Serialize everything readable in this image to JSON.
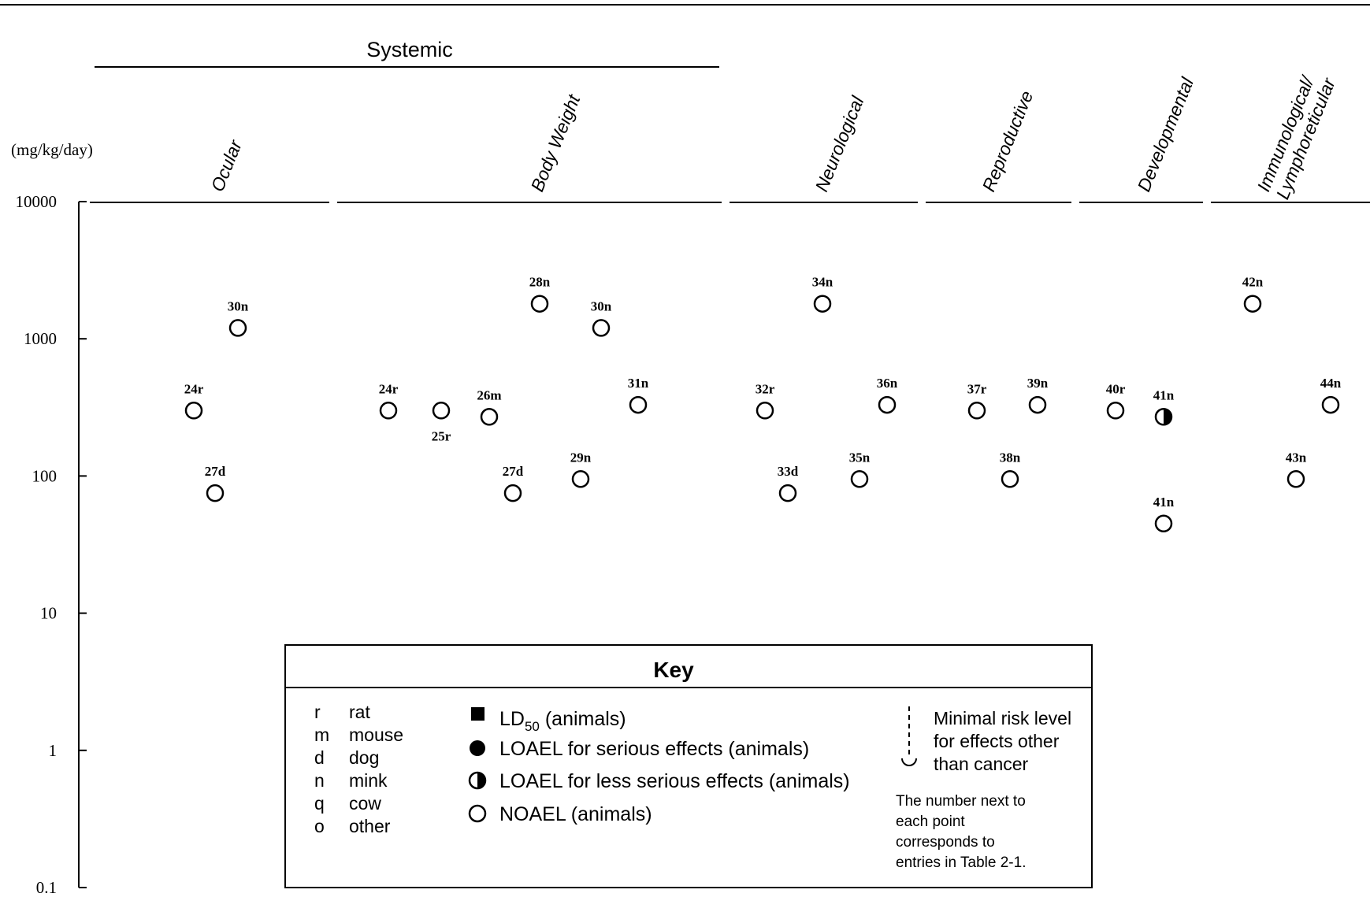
{
  "chart_data": {
    "type": "scatter",
    "y_unit_label": "(mg/kg/day)",
    "y_scale": "log",
    "ylim": [
      0.1,
      10000
    ],
    "y_ticks": [
      {
        "value": 10000,
        "label": "10000"
      },
      {
        "value": 1000,
        "label": "1000"
      },
      {
        "value": 100,
        "label": "100"
      },
      {
        "value": 10,
        "label": "10"
      },
      {
        "value": 1,
        "label": "1"
      },
      {
        "value": 0.1,
        "label": "0.1"
      }
    ],
    "group_header": "Systemic",
    "categories": [
      {
        "id": "ocular",
        "label": "Ocular"
      },
      {
        "id": "body_weight",
        "label": "Body Weight"
      },
      {
        "id": "neurological",
        "label": "Neurological"
      },
      {
        "id": "reproductive",
        "label": "Reproductive"
      },
      {
        "id": "developmental",
        "label": "Developmental"
      },
      {
        "id": "immuno",
        "label": "Immunological/ Lymphoreticular"
      }
    ],
    "points": [
      {
        "category": "ocular",
        "label": "24r",
        "y": 300,
        "marker": "noael"
      },
      {
        "category": "ocular",
        "label": "27d",
        "y": 75,
        "marker": "noael"
      },
      {
        "category": "ocular",
        "label": "30n",
        "y": 1200,
        "marker": "noael"
      },
      {
        "category": "body_weight",
        "label": "24r",
        "y": 300,
        "marker": "noael"
      },
      {
        "category": "body_weight",
        "label": "25r",
        "y": 300,
        "marker": "noael"
      },
      {
        "category": "body_weight",
        "label": "26m",
        "y": 270,
        "marker": "noael"
      },
      {
        "category": "body_weight",
        "label": "27d",
        "y": 75,
        "marker": "noael"
      },
      {
        "category": "body_weight",
        "label": "28n",
        "y": 1800,
        "marker": "noael"
      },
      {
        "category": "body_weight",
        "label": "29n",
        "y": 95,
        "marker": "noael"
      },
      {
        "category": "body_weight",
        "label": "30n",
        "y": 1200,
        "marker": "noael"
      },
      {
        "category": "body_weight",
        "label": "31n",
        "y": 330,
        "marker": "noael"
      },
      {
        "category": "neurological",
        "label": "32r",
        "y": 300,
        "marker": "noael"
      },
      {
        "category": "neurological",
        "label": "33d",
        "y": 75,
        "marker": "noael"
      },
      {
        "category": "neurological",
        "label": "34n",
        "y": 1800,
        "marker": "noael"
      },
      {
        "category": "neurological",
        "label": "35n",
        "y": 95,
        "marker": "noael"
      },
      {
        "category": "neurological",
        "label": "36n",
        "y": 330,
        "marker": "noael"
      },
      {
        "category": "reproductive",
        "label": "37r",
        "y": 300,
        "marker": "noael"
      },
      {
        "category": "reproductive",
        "label": "38n",
        "y": 95,
        "marker": "noael"
      },
      {
        "category": "reproductive",
        "label": "39n",
        "y": 330,
        "marker": "noael"
      },
      {
        "category": "developmental",
        "label": "40r",
        "y": 300,
        "marker": "noael"
      },
      {
        "category": "developmental",
        "label": "41n",
        "y": 270,
        "marker": "loael_less_serious"
      },
      {
        "category": "developmental",
        "label": "41n",
        "y": 45,
        "marker": "noael"
      },
      {
        "category": "immuno",
        "label": "42n",
        "y": 1800,
        "marker": "noael"
      },
      {
        "category": "immuno",
        "label": "43n",
        "y": 95,
        "marker": "noael"
      },
      {
        "category": "immuno",
        "label": "44n",
        "y": 330,
        "marker": "noael"
      }
    ],
    "legend": {
      "title": "Key",
      "species": [
        {
          "code": "r",
          "name": "rat"
        },
        {
          "code": "m",
          "name": "mouse"
        },
        {
          "code": "d",
          "name": "dog"
        },
        {
          "code": "n",
          "name": "mink"
        },
        {
          "code": "q",
          "name": "cow"
        },
        {
          "code": "o",
          "name": "other"
        }
      ],
      "markers": [
        {
          "id": "ld50",
          "label": "LD",
          "sub": "50",
          "suffix": " (animals)"
        },
        {
          "id": "loael_serious",
          "label": "LOAEL for serious effects (animals)"
        },
        {
          "id": "loael_less_serious",
          "label": "LOAEL for less serious effects (animals)"
        },
        {
          "id": "noael",
          "label": "NOAEL (animals)"
        }
      ],
      "mrl_lines": [
        "Minimal risk level",
        "for effects other",
        "than cancer"
      ],
      "note_lines": [
        "The number next to",
        "each point",
        "corresponds to",
        "entries in Table 2-1."
      ]
    }
  }
}
